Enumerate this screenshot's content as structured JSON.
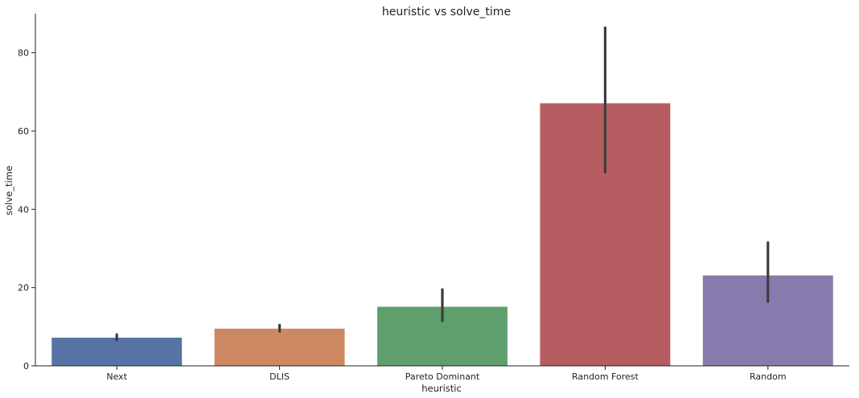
{
  "chart_data": {
    "type": "bar",
    "title": "heuristic vs solve_time",
    "xlabel": "heuristic",
    "ylabel": "solve_time",
    "categories": [
      "Next",
      "DLIS",
      "Pareto Dominant",
      "Random Forest",
      "Random"
    ],
    "values": [
      7.2,
      9.5,
      15.1,
      67.1,
      23.1
    ],
    "error_bars": [
      {
        "low": 6.6,
        "high": 8.0
      },
      {
        "low": 8.8,
        "high": 10.4
      },
      {
        "low": 11.5,
        "high": 19.5
      },
      {
        "low": 49.5,
        "high": 86.4
      },
      {
        "low": 16.4,
        "high": 31.5
      }
    ],
    "colors": [
      "#5874a6",
      "#cc8860",
      "#5f9f6d",
      "#b55d60",
      "#877aad"
    ],
    "error_bar_color": "#3d3d3d",
    "ylim": [
      0,
      90
    ],
    "yticks": [
      0,
      20,
      40,
      60,
      80
    ],
    "grid": false
  }
}
